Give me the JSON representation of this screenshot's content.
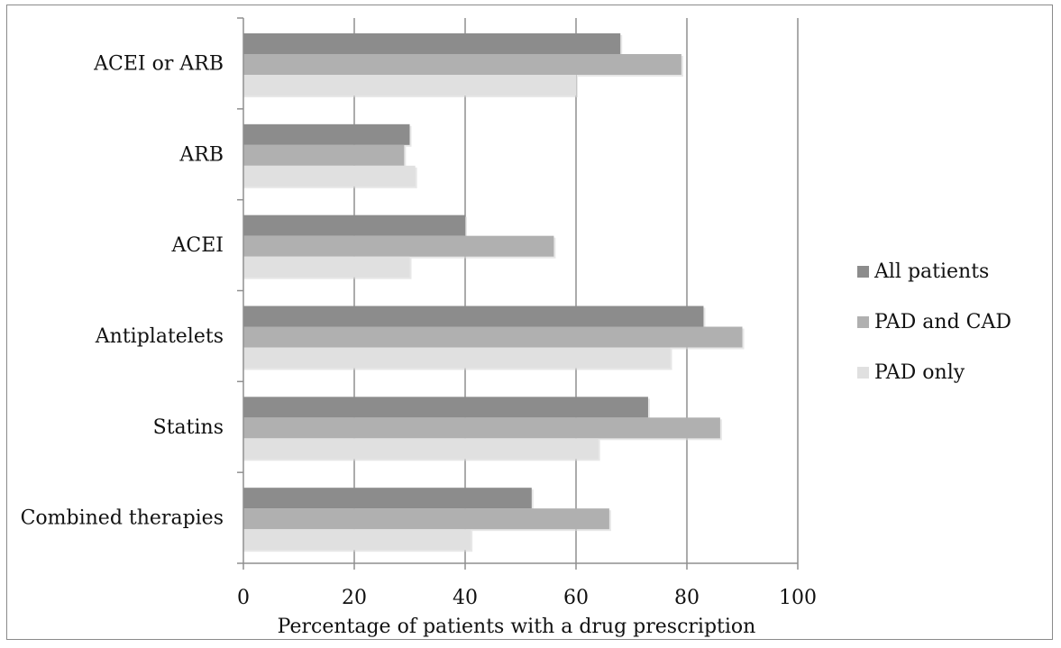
{
  "chart_data": {
    "type": "bar",
    "orientation": "horizontal",
    "categories": [
      "ACEI  or ARB",
      "ARB",
      "ACEI",
      "Antiplatelets",
      "Statins",
      "Combined therapies"
    ],
    "series": [
      {
        "name": "All patients",
        "color": "#8c8c8c",
        "values": [
          68,
          30,
          40,
          83,
          73,
          52
        ]
      },
      {
        "name": "PAD and CAD",
        "color": "#b0b0b0",
        "values": [
          79,
          29,
          56,
          90,
          86,
          66
        ]
      },
      {
        "name": "PAD only",
        "color": "#e0e0e0",
        "values": [
          60,
          31,
          30,
          77,
          64,
          41
        ]
      }
    ],
    "xlabel": "Percentage of patients with a drug prescription",
    "ylabel": "",
    "xlim": [
      0,
      100
    ],
    "xticks": [
      0,
      20,
      40,
      60,
      80,
      100
    ],
    "grid": "vertical",
    "legend": "right"
  }
}
